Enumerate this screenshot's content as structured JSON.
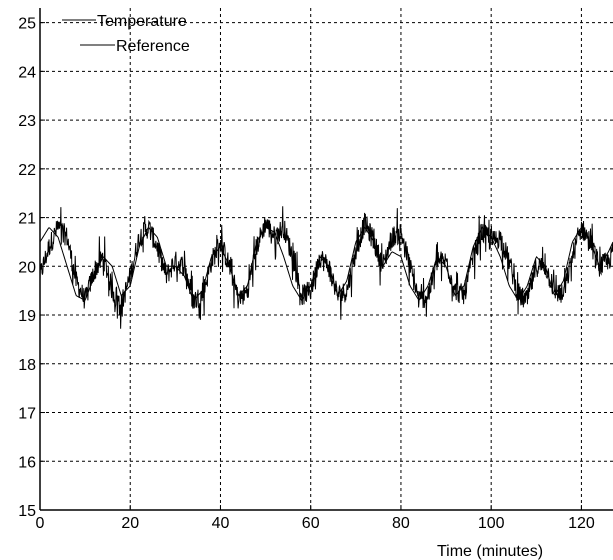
{
  "chart_data": {
    "type": "line",
    "xlabel": "Time (minutes)",
    "ylabel": "",
    "xlim": [
      0,
      127
    ],
    "ylim": [
      15,
      25.3
    ],
    "x_ticks": [
      0,
      20,
      40,
      60,
      80,
      100,
      120
    ],
    "y_ticks": [
      15,
      16,
      17,
      18,
      19,
      20,
      21,
      22,
      23,
      24,
      25
    ],
    "grid": true,
    "legend_position": "top-left",
    "series": [
      {
        "name": "Temperature",
        "color": "#000000",
        "style": "noisy",
        "x": [
          0,
          2,
          4,
          6,
          8,
          10,
          12,
          14,
          16,
          18,
          20,
          22,
          24,
          26,
          28,
          30,
          32,
          34,
          36,
          38,
          40,
          42,
          44,
          46,
          48,
          50,
          52,
          54,
          56,
          58,
          60,
          62,
          64,
          66,
          68,
          70,
          72,
          74,
          76,
          78,
          80,
          82,
          84,
          86,
          88,
          90,
          92,
          94,
          96,
          98,
          100,
          102,
          104,
          106,
          108,
          110,
          112,
          114,
          116,
          118,
          120,
          122,
          124,
          126,
          127
        ],
        "y": [
          19.8,
          20.4,
          20.8,
          20.6,
          19.7,
          19.3,
          19.9,
          20.2,
          19.5,
          19.2,
          19.8,
          20.6,
          20.8,
          20.4,
          19.8,
          20.1,
          20.0,
          19.3,
          19.4,
          20.1,
          20.5,
          20.0,
          19.3,
          19.5,
          20.4,
          20.9,
          20.6,
          20.8,
          20.2,
          19.4,
          19.5,
          20.2,
          20.0,
          19.4,
          19.5,
          20.3,
          20.9,
          20.5,
          20.0,
          20.6,
          20.7,
          20.0,
          19.3,
          19.4,
          20.1,
          20.1,
          19.5,
          19.4,
          20.2,
          20.7,
          20.5,
          20.6,
          20.1,
          19.4,
          19.3,
          20.0,
          20.0,
          19.5,
          19.4,
          20.2,
          20.8,
          20.5,
          20.0,
          20.1,
          20.3
        ]
      },
      {
        "name": "Reference",
        "color": "#000000",
        "style": "smooth",
        "x": [
          0,
          2,
          4,
          6,
          8,
          10,
          12,
          14,
          16,
          18,
          20,
          22,
          24,
          26,
          28,
          30,
          32,
          34,
          36,
          38,
          40,
          42,
          44,
          46,
          48,
          50,
          52,
          54,
          56,
          58,
          60,
          62,
          64,
          66,
          68,
          70,
          72,
          74,
          76,
          78,
          80,
          82,
          84,
          86,
          88,
          90,
          92,
          94,
          96,
          98,
          100,
          102,
          104,
          106,
          108,
          110,
          112,
          114,
          116,
          118,
          120,
          122,
          124,
          126,
          127
        ],
        "y": [
          20.5,
          20.8,
          20.6,
          20.0,
          19.4,
          19.3,
          19.8,
          20.2,
          20.0,
          19.4,
          19.6,
          20.4,
          20.8,
          20.6,
          20.0,
          20.0,
          19.8,
          19.3,
          19.5,
          20.2,
          20.4,
          20.0,
          19.4,
          19.6,
          20.5,
          20.8,
          20.7,
          20.2,
          19.6,
          19.3,
          19.6,
          20.2,
          20.0,
          19.4,
          19.7,
          20.5,
          20.8,
          20.5,
          20.0,
          20.3,
          20.2,
          19.6,
          19.3,
          19.6,
          20.2,
          20.0,
          19.4,
          19.6,
          20.4,
          20.8,
          20.6,
          20.2,
          19.6,
          19.3,
          19.6,
          20.2,
          20.0,
          19.4,
          19.7,
          20.5,
          20.8,
          20.5,
          20.0,
          20.3,
          20.5
        ]
      }
    ]
  }
}
